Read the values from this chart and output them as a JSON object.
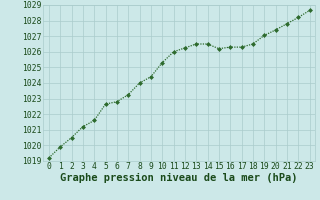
{
  "x": [
    0,
    1,
    2,
    3,
    4,
    5,
    6,
    7,
    8,
    9,
    10,
    11,
    12,
    13,
    14,
    15,
    16,
    17,
    18,
    19,
    20,
    21,
    22,
    23
  ],
  "y": [
    1019.2,
    1019.9,
    1020.5,
    1021.2,
    1021.6,
    1022.65,
    1022.8,
    1023.25,
    1024.0,
    1024.4,
    1025.3,
    1026.0,
    1026.25,
    1026.5,
    1026.5,
    1026.2,
    1026.3,
    1026.3,
    1026.5,
    1027.05,
    1027.4,
    1027.8,
    1028.2,
    1028.65
  ],
  "ylim": [
    1019,
    1029
  ],
  "xlim_min": -0.5,
  "xlim_max": 23.5,
  "yticks": [
    1019,
    1020,
    1021,
    1022,
    1023,
    1024,
    1025,
    1026,
    1027,
    1028,
    1029
  ],
  "xticks": [
    0,
    1,
    2,
    3,
    4,
    5,
    6,
    7,
    8,
    9,
    10,
    11,
    12,
    13,
    14,
    15,
    16,
    17,
    18,
    19,
    20,
    21,
    22,
    23
  ],
  "xlabel": "Graphe pression niveau de la mer (hPa)",
  "line_color": "#2d6a2d",
  "marker": "D",
  "marker_size": 2.5,
  "bg_color": "#cce8e8",
  "grid_color": "#aacccc",
  "tick_label_color": "#1a4a1a",
  "xlabel_color": "#1a4a1a",
  "tick_fontsize": 5.8,
  "xlabel_fontsize": 7.5,
  "linewidth": 0.9
}
